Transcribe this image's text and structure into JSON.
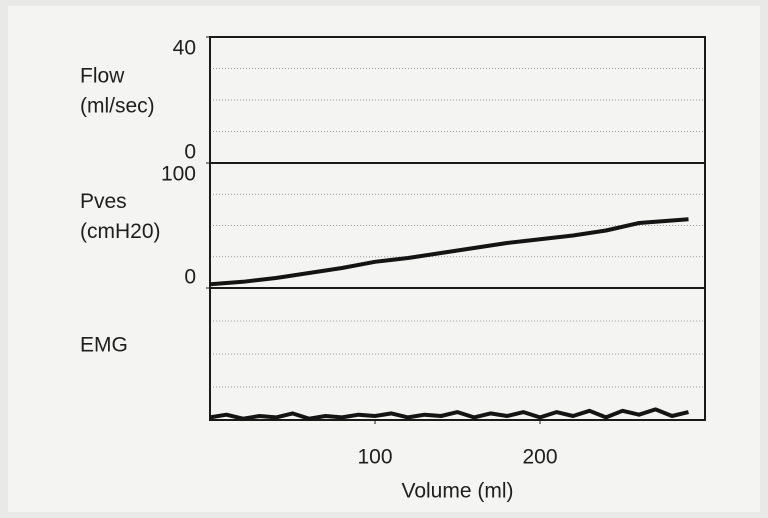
{
  "chart_data": [
    {
      "type": "line",
      "ylabel": [
        "Flow",
        "(ml/sec)"
      ],
      "xlim": [
        0,
        300
      ],
      "ylim": [
        0,
        40
      ],
      "yticks": [
        0,
        40
      ]
    },
    {
      "type": "line",
      "ylabel": [
        "Pves",
        "(cmH20)"
      ],
      "xlim": [
        0,
        300
      ],
      "ylim": [
        0,
        100
      ],
      "yticks": [
        0,
        100
      ],
      "x": [
        0,
        20,
        40,
        60,
        80,
        100,
        120,
        140,
        160,
        180,
        200,
        220,
        240,
        260,
        280,
        290
      ],
      "series": [
        {
          "color": "#141414",
          "values": [
            3,
            5,
            8,
            12,
            16,
            21,
            24,
            28,
            32,
            36,
            39,
            42,
            46,
            52,
            54,
            55
          ]
        }
      ]
    },
    {
      "type": "line",
      "ylabel": [
        "EMG"
      ],
      "xlim": [
        0,
        300
      ],
      "ylim": [
        0,
        100
      ],
      "xlabel": "Volume (ml)",
      "xticks": [
        100,
        200
      ],
      "x": [
        0,
        10,
        20,
        30,
        40,
        50,
        60,
        70,
        80,
        90,
        100,
        110,
        120,
        130,
        140,
        150,
        160,
        170,
        180,
        190,
        200,
        210,
        220,
        230,
        240,
        250,
        260,
        270,
        280,
        290
      ],
      "series": [
        {
          "color": "#141414",
          "values": [
            2,
            4,
            1,
            3,
            2,
            5,
            1,
            3,
            2,
            4,
            3,
            5,
            2,
            4,
            3,
            6,
            2,
            5,
            3,
            6,
            2,
            6,
            3,
            7,
            2,
            7,
            4,
            8,
            3,
            6
          ]
        }
      ]
    }
  ]
}
